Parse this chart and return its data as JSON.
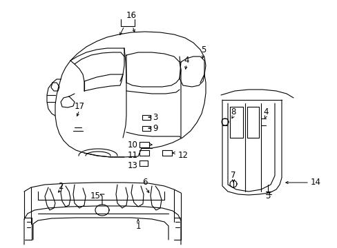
{
  "background_color": "#ffffff",
  "line_color": "#000000",
  "figsize": [
    4.89,
    3.6
  ],
  "dpi": 100,
  "label_fontsize": 8.5,
  "lw": 0.8
}
